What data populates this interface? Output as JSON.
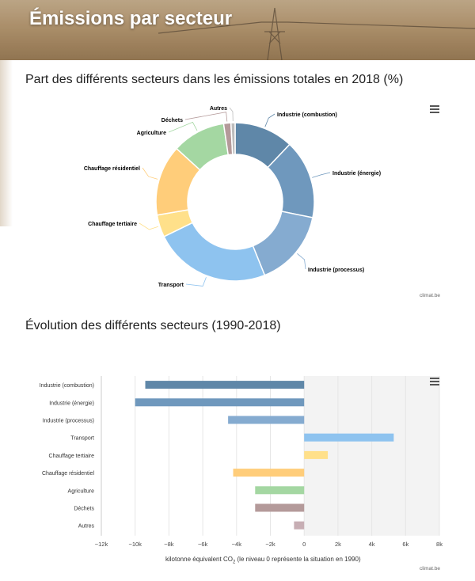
{
  "header": {
    "title": "Émissions par secteur"
  },
  "chart_data": [
    {
      "type": "pie",
      "title": "Part des différents secteurs dans les émissions totales en 2018 (%)",
      "categories": [
        "Industrie (combustion)",
        "Industrie (énergie)",
        "Industrie (processus)",
        "Transport",
        "Chauffage tertiaire",
        "Chauffage résidentiel",
        "Agriculture",
        "Déchets",
        "Autres"
      ],
      "values": [
        11.4,
        15.2,
        14.8,
        22.5,
        4.3,
        13.6,
        10.3,
        1.4,
        0.8
      ],
      "colors": [
        "#5f87a8",
        "#6f98bd",
        "#85abd0",
        "#8ec3ef",
        "#ffe08a",
        "#ffcd7a",
        "#a4d7a2",
        "#b49a9a",
        "#bdbdbd"
      ],
      "credit": "climat.be"
    },
    {
      "type": "bar",
      "orientation": "horizontal",
      "title": "Évolution des différents secteurs (1990-2018)",
      "categories": [
        "Industrie (combustion)",
        "Industrie (énergie)",
        "Industrie (processus)",
        "Transport",
        "Chauffage tertiaire",
        "Chauffage résidentiel",
        "Agriculture",
        "Déchets",
        "Autres"
      ],
      "values": [
        -9400,
        -10000,
        -4500,
        5300,
        1400,
        -4200,
        -2900,
        -2900,
        -600
      ],
      "colors": [
        "#5f87a8",
        "#6f98bd",
        "#85abd0",
        "#8ec3ef",
        "#ffe08a",
        "#ffcd7a",
        "#a4d7a2",
        "#b49a9a",
        "#c7aeb4"
      ],
      "xlim": [
        -12000,
        8000
      ],
      "xticks": [
        -12000,
        -10000,
        -8000,
        -6000,
        -4000,
        -2000,
        0,
        2000,
        4000,
        6000,
        8000
      ],
      "xtick_labels": [
        "−12k",
        "−10k",
        "−8k",
        "−6k",
        "−4k",
        "−2k",
        "0",
        "2k",
        "4k",
        "6k",
        "8k"
      ],
      "xlabel_pre": "kilotonne équivalent CO",
      "xlabel_sub": "2",
      "xlabel_post": " (le niveau 0 représente la situation en 1990)",
      "credit": "climat.be"
    }
  ]
}
